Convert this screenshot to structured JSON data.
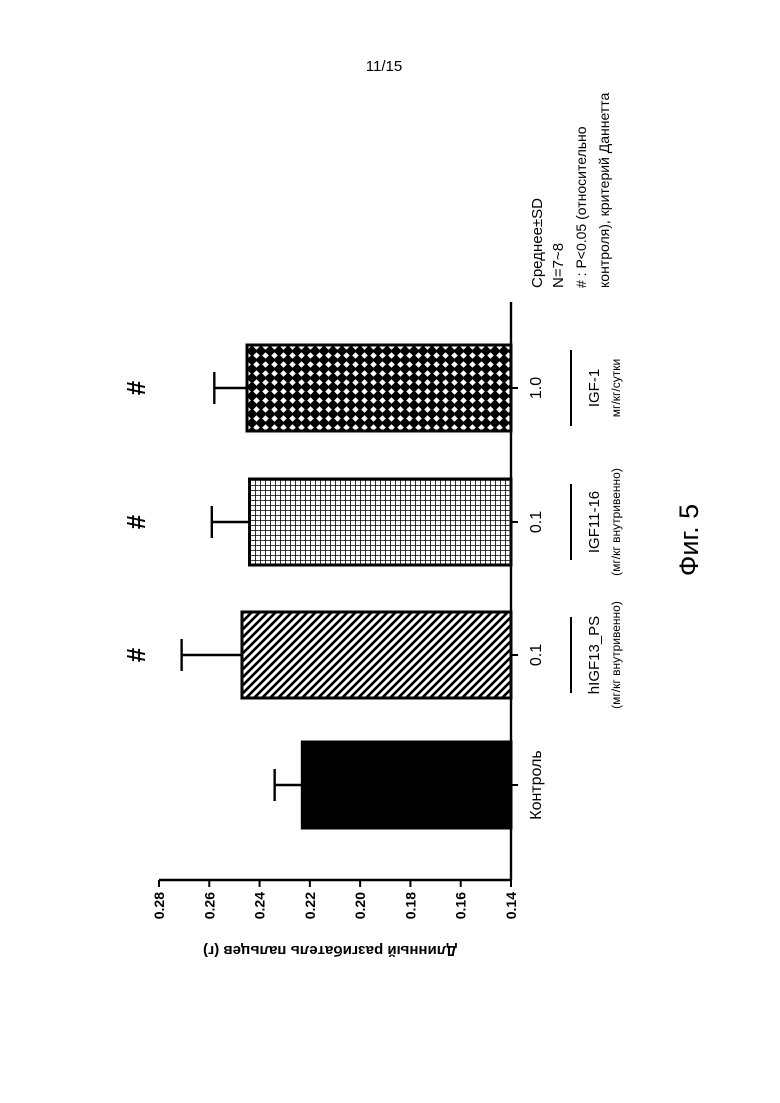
{
  "page_number": "11/15",
  "figure_label": "Фиг. 5",
  "chart_data": {
    "type": "bar",
    "orientation": "rotated-90-clockwise",
    "ylabel": "Длинный разгибатель пальцев (г)",
    "ylim": [
      0.14,
      0.28
    ],
    "yticks": [
      "0.28",
      "0.26",
      "0.24",
      "0.22",
      "0.20",
      "0.18",
      "0.16",
      "0.14"
    ],
    "categories": [
      "Контроль",
      "0.1",
      "0.1",
      "1.0"
    ],
    "values": [
      0.223,
      0.247,
      0.244,
      0.245
    ],
    "errors": [
      0.011,
      0.024,
      0.015,
      0.013
    ],
    "significance": [
      "",
      "#",
      "#",
      "#"
    ],
    "fill_patterns": [
      "solid",
      "diagonal-hatch",
      "grid",
      "crosshatch"
    ],
    "groups": [
      {
        "name": "hIGF13_PS",
        "unit": "(мг/кг внутривенно)"
      },
      {
        "name": "IGF11-16",
        "unit": "(мг/кг внутривенно)"
      },
      {
        "name": "IGF-1",
        "unit": "мг/кг/сутки"
      }
    ],
    "legend": [
      "Среднее±SD",
      "N=7~8",
      "# : P<0.05 (относительно",
      "контроля), критерий Даннетта"
    ],
    "grid": false
  }
}
